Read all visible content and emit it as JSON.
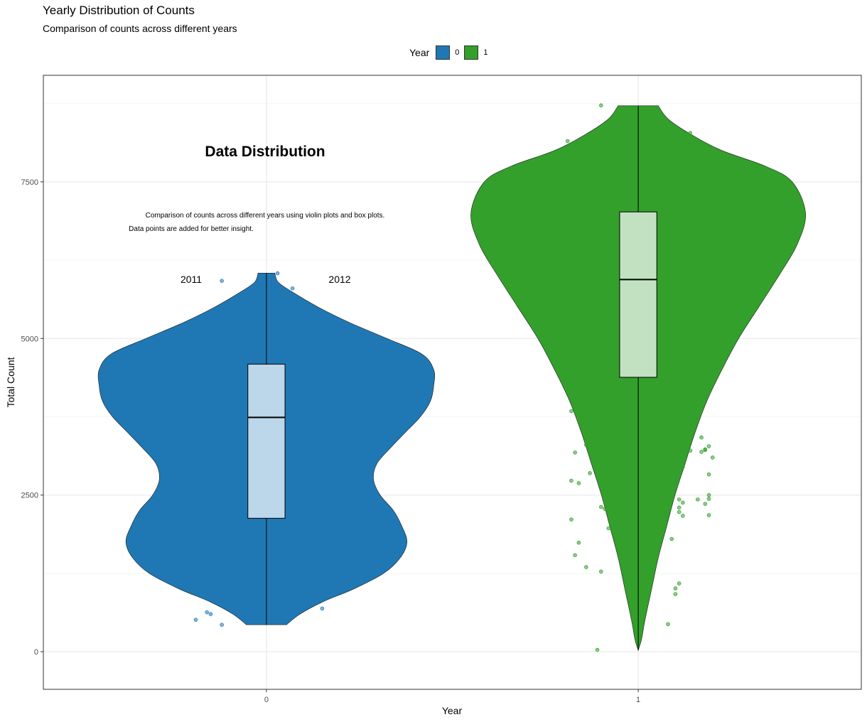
{
  "title": "Yearly Distribution of Counts",
  "subtitle": "Comparison of counts across different years",
  "legend": {
    "title": "Year",
    "items": [
      {
        "label": "0",
        "color": "#1F78B4"
      },
      {
        "label": "1",
        "color": "#33A02C"
      }
    ]
  },
  "chart_data": {
    "type": "violin",
    "xlabel": "Year",
    "ylabel": "Total Count",
    "categories": [
      "0",
      "1"
    ],
    "ylim": [
      -600,
      9200
    ],
    "y_ticks": [
      0,
      2500,
      5000,
      7500
    ],
    "grid": true,
    "legend_position": "top",
    "series": [
      {
        "category": "0",
        "color": "#1F78B4",
        "box_fill": "#BCD6EA",
        "violin_range": [
          431,
          6043
        ],
        "violin_profile": [
          [
            431,
            0.12
          ],
          [
            600,
            0.2
          ],
          [
            800,
            0.34
          ],
          [
            1000,
            0.52
          ],
          [
            1250,
            0.7
          ],
          [
            1500,
            0.8
          ],
          [
            1750,
            0.84
          ],
          [
            2000,
            0.81
          ],
          [
            2250,
            0.76
          ],
          [
            2500,
            0.68
          ],
          [
            2750,
            0.64
          ],
          [
            3000,
            0.66
          ],
          [
            3250,
            0.74
          ],
          [
            3500,
            0.83
          ],
          [
            3750,
            0.92
          ],
          [
            4000,
            0.98
          ],
          [
            4250,
            1.0
          ],
          [
            4500,
            1.0
          ],
          [
            4750,
            0.93
          ],
          [
            5000,
            0.72
          ],
          [
            5250,
            0.5
          ],
          [
            5500,
            0.31
          ],
          [
            5750,
            0.15
          ],
          [
            5900,
            0.07
          ],
          [
            6043,
            0.05
          ]
        ],
        "box": {
          "q1": 2130,
          "median": 3740,
          "q3": 4590
        },
        "whiskers": [
          431,
          6043
        ],
        "points": [
          [
            -0.19,
            510
          ],
          [
            -0.16,
            630
          ],
          [
            -0.15,
            600
          ],
          [
            -0.12,
            430
          ],
          [
            -0.16,
            1000
          ],
          [
            0.13,
            830
          ],
          [
            0.15,
            690
          ],
          [
            -0.12,
            5920
          ],
          [
            0.03,
            6040
          ],
          [
            0.07,
            5800
          ]
        ]
      },
      {
        "category": "1",
        "color": "#33A02C",
        "box_fill": "#C2E1C1",
        "violin_range": [
          22,
          8714
        ],
        "violin_profile": [
          [
            22,
            0.0
          ],
          [
            200,
            0.02
          ],
          [
            500,
            0.04
          ],
          [
            1000,
            0.08
          ],
          [
            1500,
            0.12
          ],
          [
            2000,
            0.17
          ],
          [
            2500,
            0.22
          ],
          [
            3000,
            0.28
          ],
          [
            3500,
            0.34
          ],
          [
            4000,
            0.41
          ],
          [
            4500,
            0.5
          ],
          [
            5000,
            0.6
          ],
          [
            5500,
            0.72
          ],
          [
            6000,
            0.84
          ],
          [
            6500,
            0.95
          ],
          [
            7000,
            1.0
          ],
          [
            7500,
            0.92
          ],
          [
            7750,
            0.76
          ],
          [
            8000,
            0.5
          ],
          [
            8250,
            0.32
          ],
          [
            8500,
            0.18
          ],
          [
            8714,
            0.12
          ]
        ],
        "box": {
          "q1": 4380,
          "median": 5940,
          "q3": 7020
        },
        "whiskers": [
          22,
          8714
        ],
        "points": [
          [
            -0.11,
            30
          ],
          [
            0.08,
            440
          ],
          [
            0.1,
            920
          ],
          [
            0.1,
            1010
          ],
          [
            0.11,
            1090
          ],
          [
            -0.1,
            1280
          ],
          [
            -0.14,
            1350
          ],
          [
            -0.17,
            1540
          ],
          [
            -0.16,
            1740
          ],
          [
            0.09,
            1800
          ],
          [
            -0.08,
            1970
          ],
          [
            -0.18,
            2110
          ],
          [
            0.12,
            2170
          ],
          [
            0.11,
            2230
          ],
          [
            0.19,
            2180
          ],
          [
            0.11,
            2300
          ],
          [
            -0.09,
            2280
          ],
          [
            -0.1,
            2310
          ],
          [
            0.12,
            2380
          ],
          [
            0.11,
            2430
          ],
          [
            0.16,
            2430
          ],
          [
            0.18,
            2360
          ],
          [
            0.19,
            2440
          ],
          [
            0.19,
            2500
          ],
          [
            -0.16,
            2690
          ],
          [
            -0.18,
            2730
          ],
          [
            -0.13,
            2850
          ],
          [
            0.19,
            2830
          ],
          [
            0.12,
            2950
          ],
          [
            0.2,
            3100
          ],
          [
            -0.17,
            3180
          ],
          [
            0.17,
            3190
          ],
          [
            0.18,
            3220
          ],
          [
            0.18,
            3230
          ],
          [
            0.14,
            3210
          ],
          [
            0.19,
            3280
          ],
          [
            -0.14,
            3300
          ],
          [
            0.17,
            3420
          ],
          [
            0.15,
            3610
          ],
          [
            -0.16,
            3780
          ],
          [
            -0.18,
            3840
          ],
          [
            -0.19,
            4160
          ],
          [
            -0.17,
            4320
          ],
          [
            0.19,
            4360
          ],
          [
            -0.18,
            4520
          ],
          [
            0.19,
            4650
          ],
          [
            0.18,
            4400
          ],
          [
            -0.19,
            8150
          ],
          [
            -0.16,
            8060
          ],
          [
            -0.1,
            8720
          ],
          [
            0.09,
            8340
          ],
          [
            0.14,
            8280
          ]
        ]
      }
    ]
  },
  "annotations": {
    "heading": "Data Distribution",
    "line1": "Comparison of counts across different years using violin plots and box plots.",
    "line2": "Data points are added for better insight.",
    "label_left": "2011",
    "label_right": "2012"
  }
}
